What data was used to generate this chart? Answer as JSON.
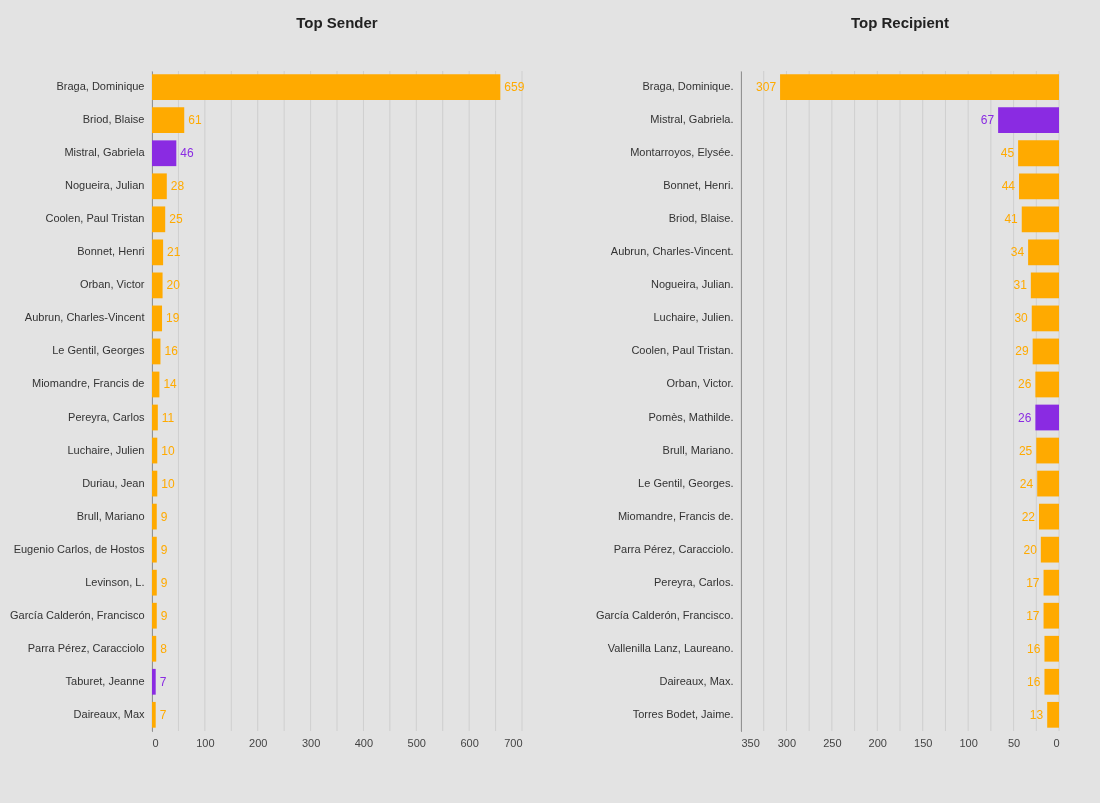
{
  "chart_data": [
    {
      "type": "bar",
      "orientation": "horizontal",
      "title": "Top Sender",
      "categories": [
        "Braga, Dominique",
        "Briod, Blaise",
        "Mistral, Gabriela",
        "Nogueira, Julian",
        "Coolen, Paul Tristan",
        "Bonnet, Henri",
        "Orban, Victor",
        "Aubrun, Charles-Vincent",
        "Le Gentil, Georges",
        "Miomandre, Francis de",
        "Pereyra, Carlos",
        "Luchaire, Julien",
        "Duriau, Jean",
        "Brull, Mariano",
        "Eugenio Carlos, de Hostos",
        "Levinson, L.",
        "García Calderón, Francisco",
        "Parra Pérez, Caracciolo",
        "Taburet, Jeanne",
        "Daireaux, Max"
      ],
      "values": [
        659,
        61,
        46,
        28,
        25,
        21,
        20,
        19,
        16,
        14,
        11,
        10,
        10,
        9,
        9,
        9,
        9,
        8,
        7,
        7
      ],
      "colors": [
        "#ffaa00",
        "#ffaa00",
        "#8a2be2",
        "#ffaa00",
        "#ffaa00",
        "#ffaa00",
        "#ffaa00",
        "#ffaa00",
        "#ffaa00",
        "#ffaa00",
        "#ffaa00",
        "#ffaa00",
        "#ffaa00",
        "#ffaa00",
        "#ffaa00",
        "#ffaa00",
        "#ffaa00",
        "#ffaa00",
        "#8a2be2",
        "#ffaa00"
      ],
      "xlim": [
        0,
        700
      ],
      "xticks": [
        0,
        {
          "value": 50,
          "label": null
        },
        100,
        {
          "value": 150,
          "label": null
        },
        200,
        {
          "value": 250,
          "label": null
        },
        300,
        {
          "value": 350,
          "label": null
        },
        400,
        {
          "value": 450,
          "label": null
        },
        500,
        {
          "value": 550,
          "label": null
        },
        600,
        {
          "value": 650,
          "label": null
        },
        700
      ],
      "grid": true,
      "data_labels": true
    },
    {
      "type": "bar",
      "orientation": "horizontal",
      "title": "Top Recipient",
      "categories": [
        "Braga, Dominique.",
        "Mistral, Gabriela.",
        "Montarroyos, Elysée.",
        "Bonnet, Henri.",
        "Briod, Blaise.",
        "Aubrun, Charles-Vincent.",
        "Nogueira, Julian.",
        "Luchaire, Julien.",
        "Coolen, Paul Tristan.",
        "Orban, Victor.",
        "Pomès, Mathilde.",
        "Brull, Mariano.",
        "Le Gentil, Georges.",
        "Miomandre, Francis de.",
        "Parra Pérez, Caracciolo.",
        "Pereyra, Carlos.",
        "García Calderón, Francisco.",
        "Vallenilla Lanz, Laureano.",
        "Daireaux, Max.",
        "Torres Bodet, Jaime."
      ],
      "values": [
        307,
        67,
        45,
        44,
        41,
        34,
        31,
        30,
        29,
        26,
        26,
        25,
        24,
        22,
        20,
        17,
        17,
        16,
        16,
        13
      ],
      "colors": [
        "#ffaa00",
        "#8a2be2",
        "#ffaa00",
        "#ffaa00",
        "#ffaa00",
        "#ffaa00",
        "#ffaa00",
        "#ffaa00",
        "#ffaa00",
        "#ffaa00",
        "#8a2be2",
        "#ffaa00",
        "#ffaa00",
        "#ffaa00",
        "#ffaa00",
        "#ffaa00",
        "#ffaa00",
        "#ffaa00",
        "#ffaa00",
        "#ffaa00"
      ],
      "xlim": [
        350,
        0
      ],
      "xticks": [
        350,
        {
          "value": 325,
          "label": null
        },
        300,
        {
          "value": 275,
          "label": null
        },
        250,
        {
          "value": 225,
          "label": null
        },
        200,
        {
          "value": 175,
          "label": null
        },
        150,
        {
          "value": 125,
          "label": null
        },
        100,
        {
          "value": 75,
          "label": null
        },
        50,
        {
          "value": 25,
          "label": null
        },
        0
      ],
      "grid": true,
      "data_labels": true
    }
  ]
}
